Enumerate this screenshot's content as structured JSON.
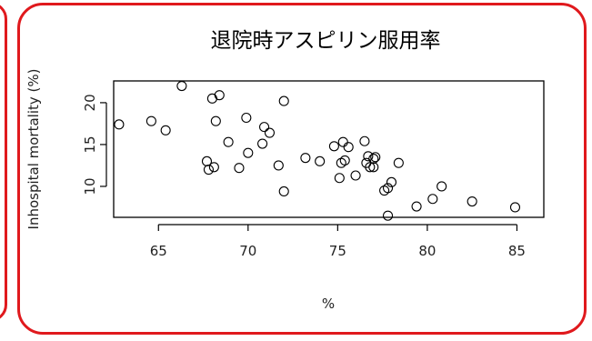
{
  "chart_data": {
    "type": "scatter",
    "title": "退院時アスピリン服用率",
    "xlabel": "%",
    "ylabel": "Inhospital mortality (%)",
    "xlim": [
      62.5,
      86.5
    ],
    "ylim": [
      6.3,
      22.6
    ],
    "xticks": [
      65,
      70,
      75,
      80,
      85
    ],
    "yticks": [
      10,
      15,
      20
    ],
    "grid": false,
    "points": [
      {
        "x": 62.8,
        "y": 17.4
      },
      {
        "x": 64.6,
        "y": 17.8
      },
      {
        "x": 65.4,
        "y": 16.7
      },
      {
        "x": 66.3,
        "y": 22.0
      },
      {
        "x": 67.7,
        "y": 13.0
      },
      {
        "x": 67.8,
        "y": 12.0
      },
      {
        "x": 68.0,
        "y": 20.5
      },
      {
        "x": 68.1,
        "y": 12.3
      },
      {
        "x": 68.2,
        "y": 17.8
      },
      {
        "x": 68.4,
        "y": 20.9
      },
      {
        "x": 68.9,
        "y": 15.3
      },
      {
        "x": 69.5,
        "y": 12.2
      },
      {
        "x": 69.9,
        "y": 18.2
      },
      {
        "x": 70.0,
        "y": 14.0
      },
      {
        "x": 70.8,
        "y": 15.1
      },
      {
        "x": 70.9,
        "y": 17.1
      },
      {
        "x": 71.2,
        "y": 16.4
      },
      {
        "x": 71.7,
        "y": 12.5
      },
      {
        "x": 72.0,
        "y": 20.2
      },
      {
        "x": 72.0,
        "y": 9.4
      },
      {
        "x": 73.2,
        "y": 13.4
      },
      {
        "x": 74.0,
        "y": 13.0
      },
      {
        "x": 74.8,
        "y": 14.8
      },
      {
        "x": 75.1,
        "y": 11.0
      },
      {
        "x": 75.2,
        "y": 12.8
      },
      {
        "x": 75.3,
        "y": 15.3
      },
      {
        "x": 75.4,
        "y": 13.1
      },
      {
        "x": 75.6,
        "y": 14.7
      },
      {
        "x": 76.0,
        "y": 11.3
      },
      {
        "x": 76.5,
        "y": 15.4
      },
      {
        "x": 76.6,
        "y": 12.8
      },
      {
        "x": 76.7,
        "y": 13.6
      },
      {
        "x": 76.8,
        "y": 12.3
      },
      {
        "x": 77.0,
        "y": 13.3
      },
      {
        "x": 77.0,
        "y": 12.3
      },
      {
        "x": 77.1,
        "y": 13.5
      },
      {
        "x": 77.6,
        "y": 9.5
      },
      {
        "x": 77.8,
        "y": 9.8
      },
      {
        "x": 78.0,
        "y": 10.5
      },
      {
        "x": 77.8,
        "y": 6.5
      },
      {
        "x": 78.4,
        "y": 12.8
      },
      {
        "x": 79.4,
        "y": 7.6
      },
      {
        "x": 80.3,
        "y": 8.5
      },
      {
        "x": 80.8,
        "y": 10.0
      },
      {
        "x": 82.5,
        "y": 8.2
      },
      {
        "x": 84.9,
        "y": 7.5
      }
    ]
  }
}
